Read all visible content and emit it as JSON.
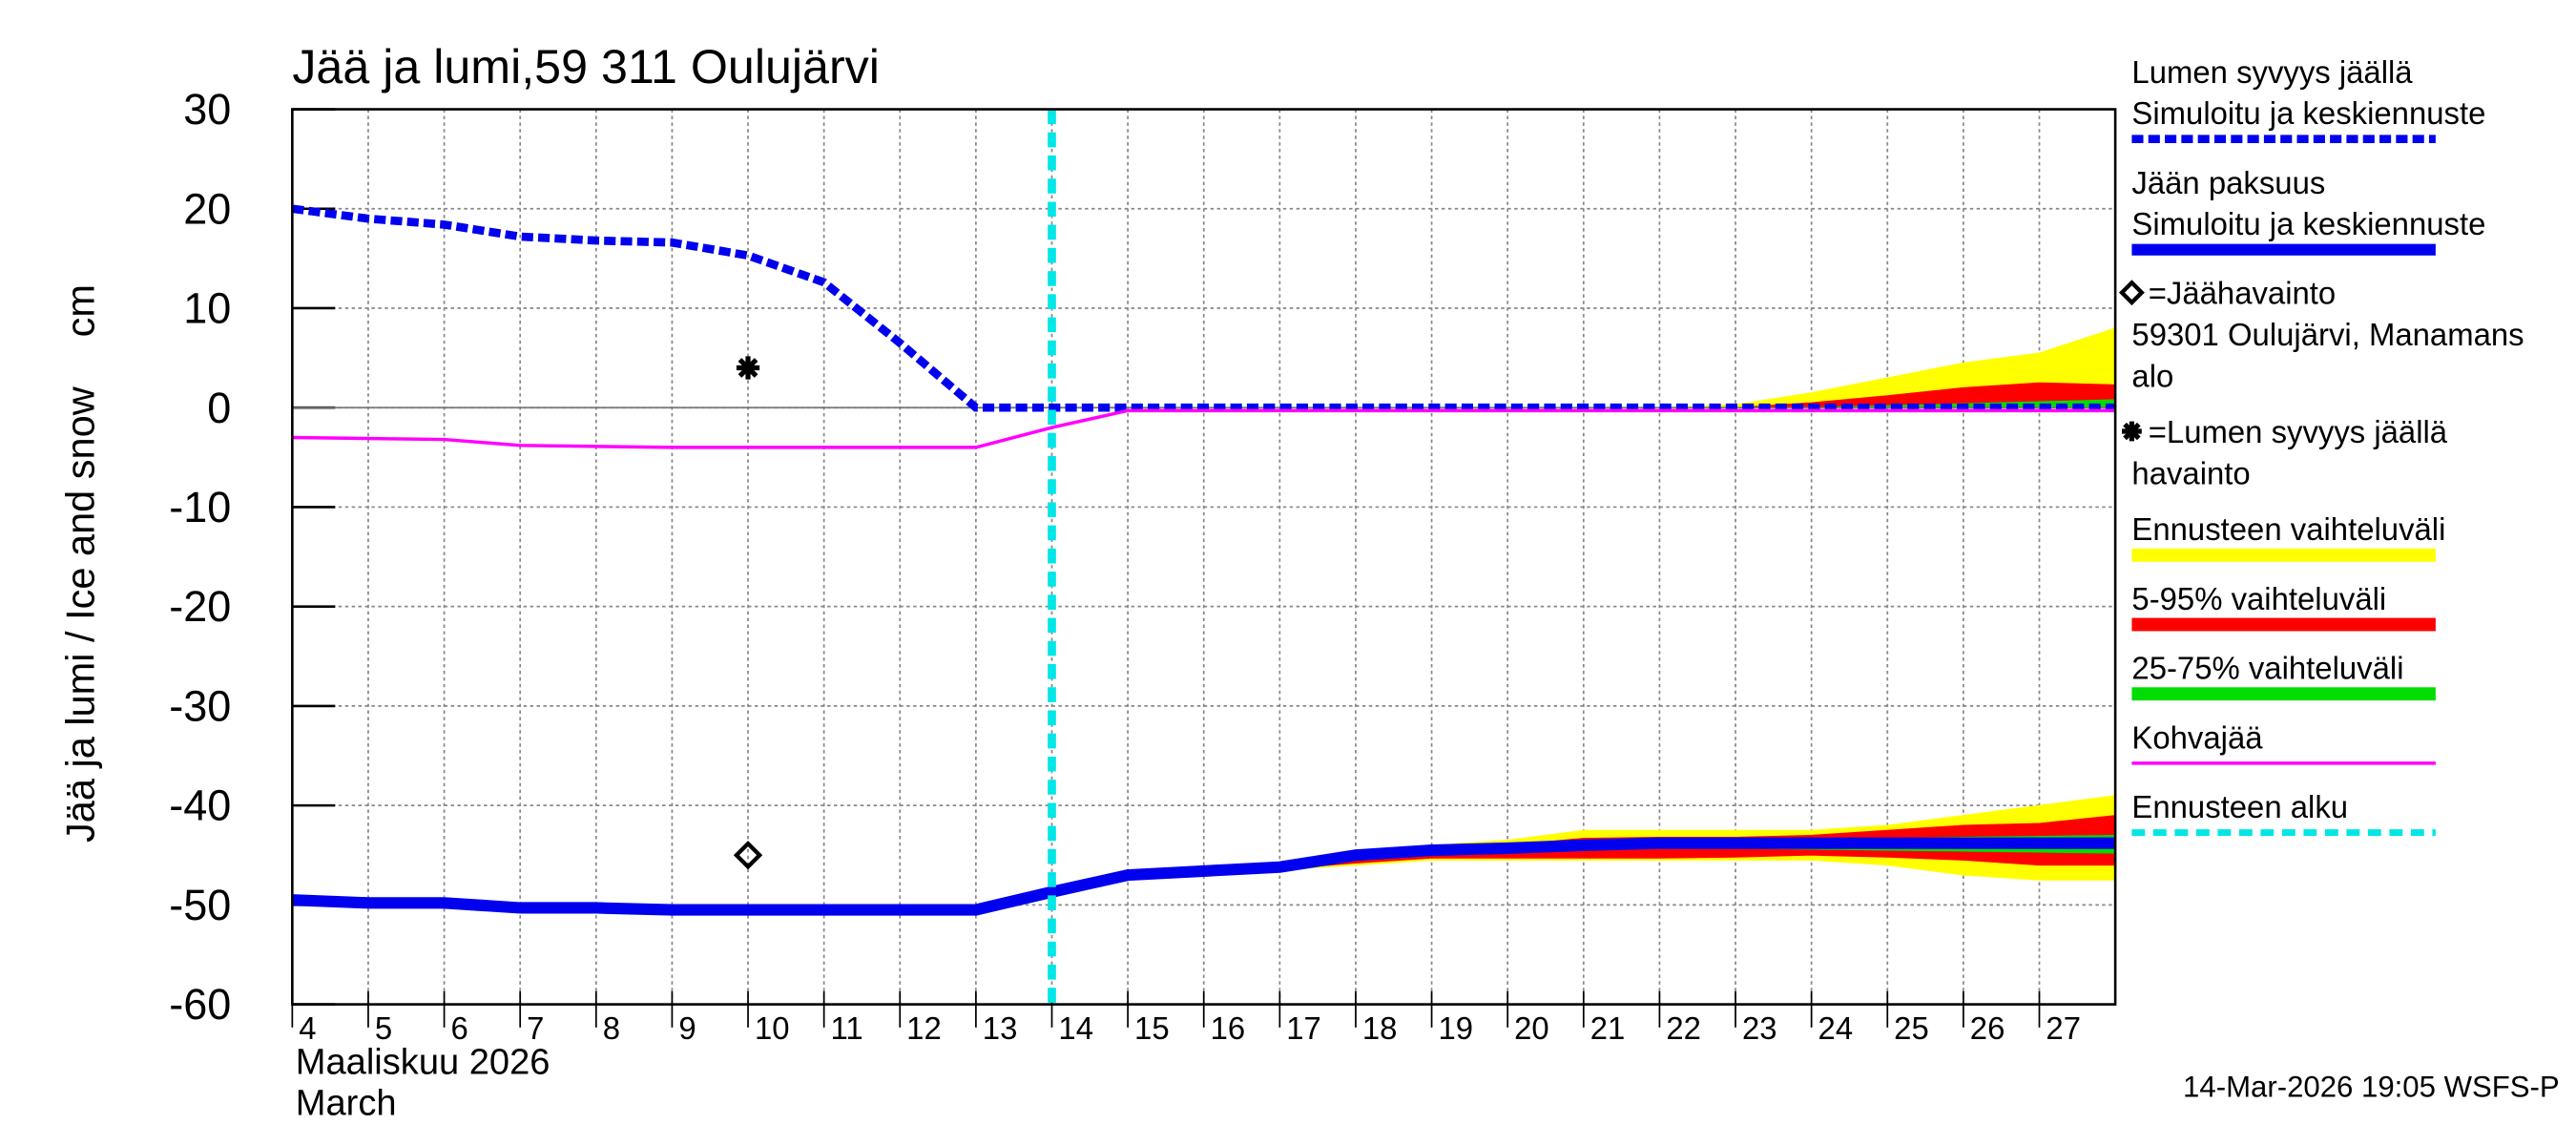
{
  "chart_data": {
    "type": "line",
    "title": "Jää ja lumi,59 311 Oulujärvi",
    "y_label": "Jää ja lumi / Ice and snow",
    "y_unit": "cm",
    "x_label_lines": [
      "Maaliskuu 2026",
      "March"
    ],
    "footer": "14-Mar-2026 19:05 WSFS-P",
    "xlim": [
      4,
      28
    ],
    "xticks": [
      4,
      5,
      6,
      7,
      8,
      9,
      10,
      11,
      12,
      13,
      14,
      15,
      16,
      17,
      18,
      19,
      20,
      21,
      22,
      23,
      24,
      25,
      26,
      27
    ],
    "ylim": [
      -60,
      30
    ],
    "yticks": [
      30,
      20,
      10,
      0,
      -10,
      -20,
      -30,
      -40,
      -50,
      -60
    ],
    "grid": true,
    "bands": [
      {
        "legend": [
          "Ennusteen vaihteluväli"
        ],
        "color": "#ffff00",
        "snow": {
          "x": [
            22,
            23,
            24,
            25,
            26,
            27,
            28
          ],
          "upper": [
            0,
            0.3,
            1.5,
            3,
            4.5,
            5.5,
            8
          ],
          "lower": [
            0,
            0,
            0,
            0,
            0,
            0,
            0
          ]
        },
        "ice": {
          "x": [
            16,
            17,
            18,
            19,
            20,
            21,
            22,
            23,
            24,
            25,
            26,
            27,
            28
          ],
          "upper": [
            -46.5,
            -46,
            -44.5,
            -44,
            -43.5,
            -42.5,
            -42.5,
            -42.5,
            -42.5,
            -42,
            -41,
            -40,
            -39
          ],
          "lower": [
            -46.6,
            -46.5,
            -46,
            -45.5,
            -45.5,
            -45.5,
            -45.5,
            -45.5,
            -45.5,
            -46,
            -47,
            -47.5,
            -47.5
          ]
        }
      },
      {
        "legend": [
          "5-95% vaihteluväli"
        ],
        "color": "#ff0000",
        "snow": {
          "x": [
            23,
            24,
            25,
            26,
            27,
            28
          ],
          "upper": [
            0,
            0.5,
            1.2,
            2,
            2.5,
            2.3
          ],
          "lower": [
            0,
            0,
            0,
            0,
            0,
            0
          ]
        },
        "ice": {
          "x": [
            17,
            18,
            19,
            20,
            21,
            22,
            23,
            24,
            25,
            26,
            27,
            28
          ],
          "upper": [
            -46.2,
            -44.8,
            -44.3,
            -44,
            -43.3,
            -43.2,
            -43.2,
            -43,
            -42.5,
            -42,
            -41.8,
            -41
          ],
          "lower": [
            -46.4,
            -45.8,
            -45.3,
            -45.3,
            -45.3,
            -45.3,
            -45.2,
            -45,
            -45.2,
            -45.5,
            -46,
            -46
          ]
        }
      },
      {
        "legend": [
          "25-75% vaihteluväli"
        ],
        "color": "#00dd00",
        "snow": {
          "x": [
            24,
            28
          ],
          "upper": [
            0,
            0.8
          ],
          "lower": [
            0,
            0
          ]
        },
        "ice": {
          "x": [
            21,
            22,
            23,
            24,
            25,
            26,
            27,
            28
          ],
          "upper": [
            -43.6,
            -43.5,
            -43.5,
            -43.4,
            -43.3,
            -43.2,
            -43.1,
            -43
          ],
          "lower": [
            -44.2,
            -44.3,
            -44.3,
            -44.4,
            -44.5,
            -44.6,
            -44.7,
            -44.8
          ]
        }
      }
    ],
    "series": [
      {
        "legend": [
          "Lumen syvyys jäällä",
          "Simuloitu ja keskiennuste"
        ],
        "color": "#0000ee",
        "style": "dashed",
        "x": [
          4,
          5,
          6,
          7,
          8,
          9,
          10,
          11,
          12,
          13,
          28
        ],
        "values": [
          20,
          19,
          18.4,
          17.2,
          16.8,
          16.6,
          15.3,
          12.6,
          6.5,
          0,
          0
        ]
      },
      {
        "legend": [
          "Jään paksuus",
          "Simuloitu ja keskiennuste"
        ],
        "color": "#0000ee",
        "style": "thick",
        "x": [
          4,
          5,
          6,
          7,
          8,
          9,
          10,
          11,
          12,
          13,
          14,
          15,
          16,
          17,
          18,
          19,
          20,
          21,
          22,
          23,
          24,
          25,
          26,
          27,
          28
        ],
        "values": [
          -49.5,
          -49.8,
          -49.8,
          -50.3,
          -50.3,
          -50.5,
          -50.5,
          -50.5,
          -50.5,
          -50.5,
          -48.7,
          -47,
          -46.6,
          -46.2,
          -45,
          -44.5,
          -44.3,
          -44,
          -43.8,
          -43.8,
          -43.8,
          -43.8,
          -43.8,
          -43.8,
          -43.8
        ]
      },
      {
        "legend": [
          "Kohvajää"
        ],
        "color": "#ff00ff",
        "style": "thin",
        "x": [
          4,
          6,
          7,
          9,
          13,
          14,
          15,
          28
        ],
        "values": [
          -3,
          -3.2,
          -3.8,
          -4,
          -4,
          -2,
          -0.3,
          -0.3
        ]
      }
    ],
    "observations": [
      {
        "legend": [
          "=Jäähavainto",
          "59301 Oulujärvi, Manamans",
          "alo"
        ],
        "marker": "diamond",
        "x": [
          10
        ],
        "values": [
          -45
        ]
      },
      {
        "legend": [
          "=Lumen syvyys jäällä",
          "havainto"
        ],
        "marker": "star",
        "x": [
          10
        ],
        "values": [
          4
        ]
      }
    ],
    "forecast_start": {
      "legend": [
        "Ennusteen alku"
      ],
      "color": "#00e5e5",
      "x": 14
    }
  }
}
